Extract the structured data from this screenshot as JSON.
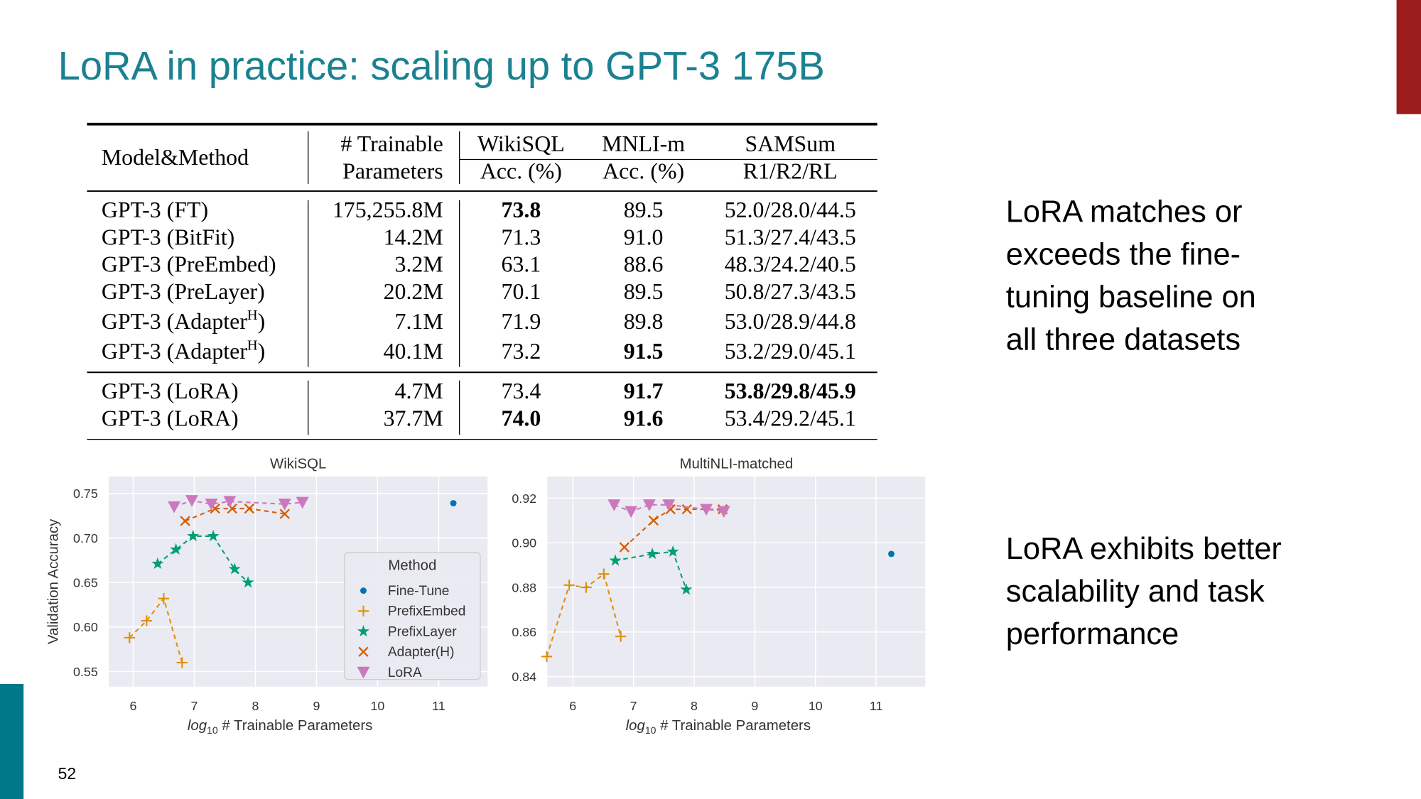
{
  "title": "LoRA in practice: scaling up to GPT-3 175B",
  "table": {
    "header": [
      [
        "Model&Method"
      ],
      [
        "# Trainable",
        "Parameters"
      ],
      [
        "WikiSQL",
        "Acc. (%)"
      ],
      [
        "MNLI-m",
        "Acc. (%)"
      ],
      [
        "SAMSum",
        "R1/R2/RL"
      ]
    ],
    "rows": [
      [
        "GPT-3 (FT)",
        "175,255.8M",
        "73.8",
        "89.5",
        "52.0/28.0/44.5"
      ],
      [
        "GPT-3 (BitFit)",
        "14.2M",
        "71.3",
        "91.0",
        "51.3/27.4/43.5"
      ],
      [
        "GPT-3 (PreEmbed)",
        "3.2M",
        "63.1",
        "88.6",
        "48.3/24.2/40.5"
      ],
      [
        "GPT-3 (PreLayer)",
        "20.2M",
        "70.1",
        "89.5",
        "50.8/27.3/43.5"
      ],
      [
        [
          "GPT-3 (Adapter",
          "H",
          ")"
        ],
        "7.1M",
        "71.9",
        "89.8",
        "53.0/28.9/44.8"
      ],
      [
        [
          "GPT-3 (Adapter",
          "H",
          ")"
        ],
        "40.1M",
        "73.2",
        "91.5",
        "53.2/29.0/45.1"
      ],
      [
        "GPT-3 (LoRA)",
        "4.7M",
        "73.4",
        "91.7",
        "53.8/29.8/45.9"
      ],
      [
        "GPT-3 (LoRA)",
        "37.7M",
        "74.0",
        "91.6",
        "53.4/29.2/45.1"
      ]
    ],
    "bold": [
      [
        0,
        2
      ],
      [
        5,
        3
      ],
      [
        6,
        3
      ],
      [
        6,
        4
      ],
      [
        7,
        2
      ],
      [
        7,
        3
      ]
    ]
  },
  "notes": [
    [
      "LoRA matches or",
      "exceeds the fine-",
      "tuning baseline on",
      "all three datasets"
    ],
    [
      "LoRA exhibits better",
      "scalability and task",
      "performance"
    ]
  ],
  "page_number": "52",
  "chart_data": [
    {
      "type": "scatter",
      "title": "WikiSQL",
      "y_label": "Validation Accuracy",
      "x_label": [
        "log",
        "10",
        " # Trainable Parameters"
      ],
      "xlim": [
        5.6,
        11.8
      ],
      "ylim": [
        0.533,
        0.769
      ],
      "xticks": [
        6,
        7,
        8,
        9,
        10,
        11
      ],
      "yticks": [
        0.55,
        {
          "value": 0.6,
          "label": "0.60"
        },
        0.65,
        {
          "value": 0.7,
          "label": "0.70"
        },
        0.75
      ],
      "grid": true,
      "line_style": "dashed",
      "legend": "lower right",
      "legend_title": "Method",
      "series": [
        {
          "name": "Fine-Tune",
          "color": "#0173b2",
          "marker": "circle",
          "x": [
            11.24
          ],
          "y": [
            0.739
          ]
        },
        {
          "name": "PrefixEmbed",
          "color": "#de8f05",
          "marker": "plus",
          "x": [
            5.94,
            6.22,
            6.5,
            6.8
          ],
          "y": [
            0.588,
            0.607,
            0.632,
            0.56
          ]
        },
        {
          "name": "PrefixLayer",
          "color": "#029e73",
          "marker": "star",
          "x": [
            6.4,
            6.7,
            6.98,
            7.31,
            7.66,
            7.88
          ],
          "y": [
            0.671,
            0.687,
            0.702,
            0.702,
            0.665,
            0.65
          ]
        },
        {
          "name": "Adapter(H)",
          "color": "#d55e00",
          "marker": "x",
          "x": [
            6.85,
            7.34,
            7.62,
            7.9,
            8.48
          ],
          "y": [
            0.719,
            0.733,
            0.733,
            0.733,
            0.727
          ]
        },
        {
          "name": "LoRA",
          "color": "#cc78bc",
          "marker": "triangle-down",
          "x": [
            6.67,
            6.96,
            7.28,
            7.58,
            8.48,
            8.77
          ],
          "y": [
            0.735,
            0.742,
            0.738,
            0.741,
            0.738,
            0.74
          ]
        }
      ]
    },
    {
      "type": "scatter",
      "title": "MultiNLI-matched",
      "x_label": [
        "log",
        "10",
        " # Trainable Parameters"
      ],
      "xlim": [
        5.58,
        11.81
      ],
      "ylim": [
        0.8355,
        0.9297
      ],
      "xticks": [
        6,
        7,
        8,
        9,
        10,
        11
      ],
      "yticks": [
        0.84,
        0.86,
        0.88,
        {
          "value": 0.9,
          "label": "0.90"
        },
        0.92
      ],
      "grid": true,
      "line_style": "dashed",
      "series": [
        {
          "name": "Fine-Tune",
          "color": "#0173b2",
          "marker": "circle",
          "x": [
            11.25
          ],
          "y": [
            0.895
          ]
        },
        {
          "name": "PrefixEmbed",
          "color": "#de8f05",
          "marker": "plus",
          "x": [
            5.57,
            5.94,
            6.22,
            6.51,
            6.79
          ],
          "y": [
            0.849,
            0.881,
            0.88,
            0.886,
            0.858
          ]
        },
        {
          "name": "PrefixLayer",
          "color": "#029e73",
          "marker": "star",
          "x": [
            6.7,
            7.31,
            7.65,
            7.87
          ],
          "y": [
            0.892,
            0.895,
            0.896,
            0.879
          ]
        },
        {
          "name": "Adapter(H)",
          "color": "#d55e00",
          "marker": "x",
          "x": [
            6.85,
            7.33,
            7.61,
            7.88,
            8.47
          ],
          "y": [
            0.898,
            0.91,
            0.915,
            0.915,
            0.915
          ]
        },
        {
          "name": "LoRA",
          "color": "#cc78bc",
          "marker": "triangle-down",
          "x": [
            6.68,
            6.96,
            7.26,
            7.58,
            8.2,
            8.49
          ],
          "y": [
            0.917,
            0.914,
            0.917,
            0.917,
            0.915,
            0.914
          ]
        }
      ]
    }
  ]
}
